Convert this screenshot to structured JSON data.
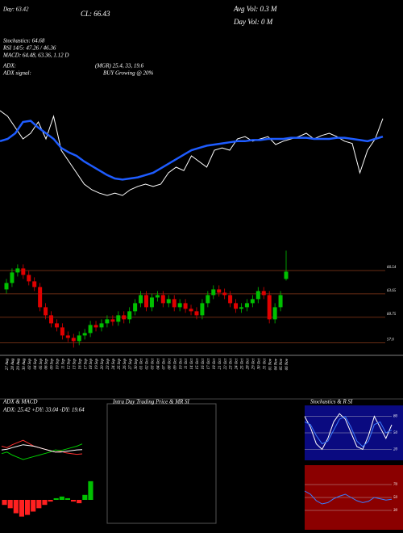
{
  "header": {
    "lines": [
      "Day: 63.42",
      "CL: 66.43",
      "Avg Vol: 0.3 M",
      "Day Vol: 0 M",
      "Stochastics: 64.68",
      "RSI 14/5: 47.26 / 46.36",
      "MACD: 64.48, 63.36, 1.12 D",
      "ADX:",
      "(MGR) 25.4, 33, 19.6",
      "ADX signal:",
      "BUY Growing @ 20%"
    ]
  },
  "chart_data": [
    {
      "type": "line",
      "ylim": [
        0,
        100
      ],
      "series": [
        {
          "color": "#ffffff",
          "values": [
            95,
            90,
            80,
            70,
            75,
            85,
            70,
            90,
            60,
            50,
            40,
            30,
            25,
            22,
            20,
            22,
            20,
            25,
            28,
            30,
            28,
            30,
            40,
            45,
            42,
            55,
            50,
            45,
            60,
            62,
            60,
            70,
            72,
            68,
            70,
            72,
            65,
            68,
            70,
            72,
            75,
            70,
            73,
            75,
            72,
            68,
            66,
            40,
            60,
            70,
            88
          ]
        },
        {
          "color": "#1e5cff",
          "values": [
            68,
            70,
            75,
            85,
            86,
            80,
            75,
            70,
            62,
            58,
            55,
            50,
            46,
            42,
            38,
            35,
            34,
            35,
            36,
            38,
            40,
            44,
            48,
            52,
            56,
            60,
            62,
            64,
            65,
            66,
            67,
            68,
            68,
            69,
            69,
            70,
            70,
            70,
            71,
            71,
            71,
            70,
            70,
            70,
            71,
            71,
            70,
            69,
            68,
            70,
            72
          ]
        }
      ]
    },
    {
      "type": "candlestick",
      "up_color": "#00c000",
      "down_color": "#e00000",
      "grid_color": "#8b3a1a",
      "ylim": [
        56.04,
        70.04
      ],
      "yticks": [
        66.54,
        63.65,
        60.75,
        57.6
      ],
      "categories": [
        "27 Aug",
        "28 Aug",
        "29 Aug",
        "30 Aug",
        "03 Sep",
        "04 Sep",
        "05 Sep",
        "06 Sep",
        "09 Sep",
        "10 Sep",
        "11 Sep",
        "12 Sep",
        "13 Sep",
        "16 Sep",
        "17 Sep",
        "18 Sep",
        "19 Sep",
        "20 Sep",
        "23 Sep",
        "24 Sep",
        "25 Sep",
        "26 Sep",
        "27 Sep",
        "30 Sep",
        "01 Oct",
        "02 Oct",
        "03 Oct",
        "04 Oct",
        "07 Oct",
        "08 Oct",
        "09 Oct",
        "10 Oct",
        "11 Oct",
        "14 Oct",
        "15 Oct",
        "16 Oct",
        "17 Oct",
        "18 Oct",
        "21 Oct",
        "22 Oct",
        "23 Oct",
        "24 Oct",
        "25 Oct",
        "28 Oct",
        "29 Oct",
        "30 Oct",
        "31 Oct",
        "01 Nov",
        "04 Nov",
        "05 Nov",
        "06 Nov"
      ],
      "open": [
        64.2,
        65.0,
        66.3,
        66.8,
        66.0,
        65.2,
        64.5,
        62.0,
        61.0,
        60.0,
        59.5,
        58.5,
        58.2,
        57.8,
        58.5,
        58.8,
        59.8,
        59.5,
        60.0,
        60.5,
        60.2,
        61.0,
        60.5,
        61.5,
        62.5,
        63.5,
        62.0,
        63.2,
        63.5,
        62.5,
        63.0,
        62.0,
        62.5,
        61.8,
        61.5,
        61.0,
        62.5,
        63.5,
        64.2,
        63.8,
        63.5,
        62.5,
        61.8,
        62.0,
        62.5,
        63.0,
        64.0,
        63.5,
        60.5,
        62.0,
        65.5
      ],
      "high": [
        65.5,
        66.8,
        67.3,
        67.3,
        66.5,
        65.7,
        65.0,
        62.5,
        61.5,
        60.5,
        60.0,
        59.0,
        58.7,
        59.0,
        59.3,
        60.3,
        60.3,
        60.5,
        61.0,
        61.0,
        61.5,
        61.5,
        62.0,
        63.0,
        64.0,
        64.0,
        63.7,
        64.0,
        64.0,
        63.5,
        63.5,
        63.0,
        63.0,
        62.3,
        62.0,
        63.0,
        64.0,
        64.7,
        64.7,
        64.3,
        64.0,
        63.0,
        62.5,
        63.0,
        63.5,
        64.5,
        64.5,
        64.0,
        62.5,
        64.0,
        69.0
      ],
      "low": [
        63.7,
        64.5,
        65.8,
        65.5,
        64.7,
        64.0,
        61.5,
        60.5,
        59.5,
        59.0,
        58.0,
        57.7,
        57.0,
        57.3,
        58.0,
        58.3,
        59.0,
        59.0,
        59.5,
        59.7,
        59.7,
        60.0,
        60.0,
        61.0,
        62.0,
        61.5,
        61.5,
        62.7,
        62.0,
        62.0,
        61.5,
        61.5,
        61.3,
        61.0,
        60.5,
        60.5,
        62.0,
        63.0,
        63.3,
        63.0,
        62.0,
        61.3,
        61.3,
        61.5,
        62.0,
        62.5,
        63.0,
        60.0,
        60.0,
        61.5,
        65.3
      ],
      "close": [
        65.0,
        66.3,
        66.8,
        66.0,
        65.2,
        64.5,
        62.0,
        61.0,
        60.0,
        59.5,
        58.5,
        58.2,
        57.8,
        58.5,
        58.8,
        59.8,
        59.5,
        60.0,
        60.5,
        60.2,
        61.0,
        60.5,
        61.5,
        62.5,
        63.5,
        62.0,
        63.2,
        63.5,
        62.5,
        63.0,
        62.0,
        62.5,
        61.8,
        61.5,
        61.0,
        62.5,
        63.5,
        64.2,
        63.8,
        63.5,
        62.5,
        61.8,
        62.0,
        62.5,
        63.0,
        64.0,
        63.5,
        60.5,
        62.0,
        63.5,
        66.4
      ]
    },
    {
      "type": "line",
      "title": "ADX & MACD",
      "subtitle": "ADX: 25.42  +DY: 33.04  -DY: 19.64",
      "ylim": [
        0,
        60
      ],
      "series": [
        {
          "color": "#00d000",
          "values": [
            20,
            22,
            18,
            15,
            12,
            14,
            16,
            18,
            20,
            22,
            25,
            24,
            26,
            28,
            30,
            33.04
          ]
        },
        {
          "color": "#ff3030",
          "values": [
            30,
            28,
            32,
            35,
            38,
            34,
            30,
            28,
            26,
            24,
            22,
            23,
            21,
            20,
            19,
            19.64
          ]
        },
        {
          "color": "#ffffff",
          "values": [
            25,
            26,
            28,
            30,
            32,
            31,
            30,
            28,
            26,
            24,
            22,
            22,
            23,
            24,
            25,
            25.42
          ]
        }
      ]
    },
    {
      "type": "histogram_bars",
      "ylim": [
        -1.5,
        1.5
      ],
      "up_color": "#00c000",
      "down_color": "#ff2020",
      "values": [
        -0.3,
        -0.5,
        -0.8,
        -1,
        -0.9,
        -0.7,
        -0.5,
        -0.3,
        -0.1,
        0.1,
        0.2,
        0.1,
        -0.1,
        -0.2,
        0.3,
        1.12
      ]
    },
    {
      "type": "empty",
      "title": "Intra Day Trading Price & MR SI"
    },
    {
      "type": "line",
      "title": "Stochastics & R SI",
      "background": "#0a0a80",
      "ylim": [
        0,
        100
      ],
      "yticks": [
        80,
        50,
        20
      ],
      "series": [
        {
          "color": "#ffffff",
          "values": [
            80,
            60,
            30,
            20,
            40,
            70,
            85,
            75,
            50,
            25,
            20,
            45,
            80,
            60,
            40,
            64.68
          ]
        },
        {
          "color": "#3a7bff",
          "values": [
            70,
            65,
            45,
            30,
            35,
            55,
            75,
            80,
            60,
            35,
            25,
            35,
            65,
            70,
            50,
            55
          ]
        }
      ]
    },
    {
      "type": "line",
      "background": "#8b0000",
      "ylim": [
        0,
        100
      ],
      "yticks": [
        70,
        50,
        30
      ],
      "series": [
        {
          "color": "#3a7bff",
          "values": [
            60,
            55,
            45,
            40,
            42,
            48,
            52,
            55,
            50,
            45,
            42,
            44,
            50,
            48,
            46,
            47.26
          ]
        }
      ]
    }
  ]
}
